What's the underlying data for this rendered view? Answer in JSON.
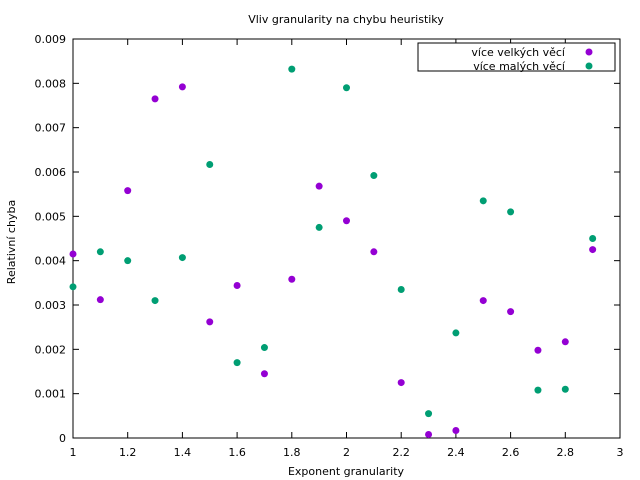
{
  "chart_data": {
    "type": "scatter",
    "title": "Vliv granularity na chybu heuristiky",
    "xlabel": "Exponent granularity",
    "ylabel": "Relativní chyba",
    "xlim": [
      1,
      3
    ],
    "ylim": [
      0,
      0.009
    ],
    "x_ticks": [
      1,
      1.2,
      1.4,
      1.6,
      1.8,
      2,
      2.2,
      2.4,
      2.6,
      2.8,
      3
    ],
    "x_tick_labels": [
      "1",
      "1.2",
      "1.4",
      "1.6",
      "1.8",
      "2",
      "2.2",
      "2.4",
      "2.6",
      "2.8",
      "3"
    ],
    "y_ticks": [
      0,
      0.001,
      0.002,
      0.003,
      0.004,
      0.005,
      0.006,
      0.007,
      0.008,
      0.009
    ],
    "y_tick_labels": [
      "0",
      "0.001",
      "0.002",
      "0.003",
      "0.004",
      "0.005",
      "0.006",
      "0.007",
      "0.008",
      "0.009"
    ],
    "grid": false,
    "legend_position": "top-right",
    "series": [
      {
        "name": "více velkých věcí",
        "color": "#9400d3",
        "points": [
          [
            1.0,
            0.00415
          ],
          [
            1.1,
            0.00312
          ],
          [
            1.2,
            0.00558
          ],
          [
            1.3,
            0.00765
          ],
          [
            1.4,
            0.00792
          ],
          [
            1.5,
            0.00262
          ],
          [
            1.6,
            0.00344
          ],
          [
            1.7,
            0.00145
          ],
          [
            1.8,
            0.00358
          ],
          [
            1.9,
            0.00568
          ],
          [
            2.0,
            0.0049
          ],
          [
            2.1,
            0.0042
          ],
          [
            2.2,
            0.00125
          ],
          [
            2.3,
            8e-05
          ],
          [
            2.4,
            0.00017
          ],
          [
            2.5,
            0.0031
          ],
          [
            2.6,
            0.00285
          ],
          [
            2.7,
            0.00198
          ],
          [
            2.8,
            0.00217
          ],
          [
            2.9,
            0.00425
          ]
        ]
      },
      {
        "name": "více malých věcí",
        "color": "#009e73",
        "points": [
          [
            1.0,
            0.00341
          ],
          [
            1.1,
            0.0042
          ],
          [
            1.2,
            0.004
          ],
          [
            1.3,
            0.0031
          ],
          [
            1.4,
            0.00407
          ],
          [
            1.5,
            0.00617
          ],
          [
            1.6,
            0.0017
          ],
          [
            1.7,
            0.00204
          ],
          [
            1.8,
            0.00832
          ],
          [
            1.9,
            0.00475
          ],
          [
            2.0,
            0.0079
          ],
          [
            2.1,
            0.00592
          ],
          [
            2.2,
            0.00335
          ],
          [
            2.3,
            0.00055
          ],
          [
            2.4,
            0.00237
          ],
          [
            2.5,
            0.00535
          ],
          [
            2.6,
            0.0051
          ],
          [
            2.7,
            0.00108
          ],
          [
            2.8,
            0.0011
          ],
          [
            2.9,
            0.0045
          ]
        ]
      }
    ]
  }
}
